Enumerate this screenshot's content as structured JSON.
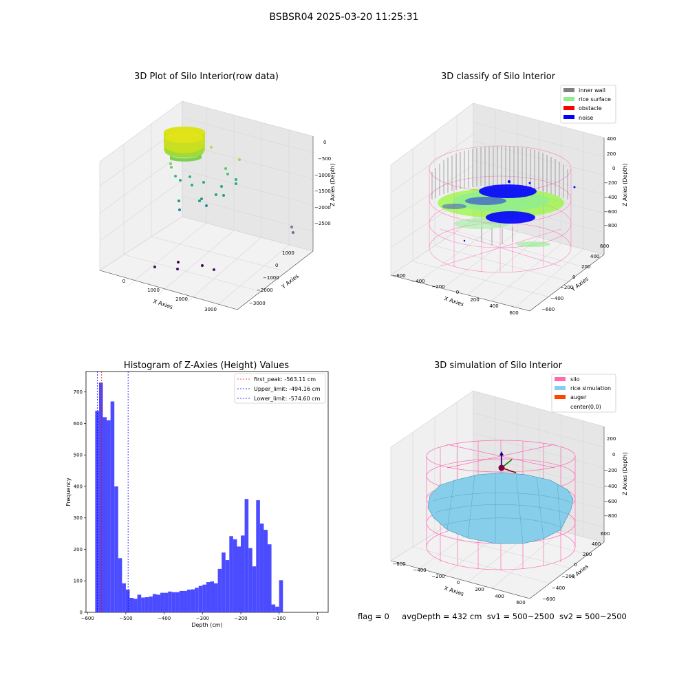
{
  "suptitle": "BSBSR04 2025-03-20 11:25:31",
  "footer": {
    "flag": "flag = 0",
    "avg_depth": "avgDepth = 432 cm",
    "sv1": "sv1 = 500~2500",
    "sv2": "sv2 = 500~2500"
  },
  "colors": {
    "inner_wall": "#808080",
    "rice_surface": "#90ee90",
    "obstacle": "#ff0000",
    "noise": "#0000ff",
    "silo": "#ff69b4",
    "rice_simulation": "#87ceeb",
    "auger": "#ff4500",
    "histogram": "#4b4bff",
    "first_peak": "#ff0000",
    "limits": "#0000ff"
  },
  "chart_data": [
    {
      "type": "scatter",
      "title": "3D Plot of Silo Interior(row data)",
      "xlabel": "X Axies",
      "ylabel": "Y Axies",
      "zlabel": "Z Axies (Depth)",
      "x_ticks": [
        "0",
        "1000",
        "2000",
        "3000"
      ],
      "y_ticks": [
        "1000",
        "0",
        "−1000",
        "−2000",
        "−3000"
      ],
      "z_ticks": [
        "0",
        "−500",
        "−1000",
        "−1500",
        "−2000",
        "−2500"
      ],
      "colormap": "viridis"
    },
    {
      "type": "scatter",
      "title": "3D classify of Silo Interior",
      "xlabel": "X Axies",
      "ylabel": "Y Axies",
      "zlabel": "Z Axies (Depth)",
      "x_ticks": [
        "−600",
        "−400",
        "−200",
        "0",
        "200",
        "400",
        "600"
      ],
      "y_ticks": [
        "600",
        "400",
        "200",
        "0",
        "−200",
        "−400",
        "−600"
      ],
      "z_ticks": [
        "400",
        "200",
        "0",
        "−200",
        "−400",
        "−600",
        "−800"
      ],
      "legend": [
        "inner wall",
        "rice surface",
        "obstacle",
        "noise"
      ],
      "legend_position": "top-right"
    },
    {
      "type": "bar",
      "title": "Histogram of Z-Axies (Height) Values",
      "xlabel": "Depth (cm)",
      "ylabel": "Frequency",
      "xlim": [
        -580,
        0
      ],
      "ylim": [
        0,
        765
      ],
      "x_ticks": [
        -600,
        -500,
        -400,
        -300,
        -200,
        -100,
        0
      ],
      "x_tick_labels": [
        "−600",
        "−500",
        "−400",
        "−300",
        "−200",
        "−100",
        "0"
      ],
      "y_ticks": [
        0,
        100,
        200,
        300,
        400,
        500,
        600,
        700
      ],
      "y_tick_labels": [
        "0",
        "100",
        "200",
        "300",
        "400",
        "500",
        "600",
        "700"
      ],
      "bin_width": 10,
      "bin_start": -580,
      "values": [
        640,
        730,
        620,
        610,
        670,
        400,
        172,
        92,
        72,
        46,
        43,
        56,
        47,
        48,
        50,
        58,
        56,
        62,
        62,
        66,
        64,
        64,
        68,
        68,
        72,
        73,
        78,
        84,
        88,
        96,
        98,
        92,
        138,
        190,
        166,
        242,
        232,
        209,
        244,
        360,
        204,
        146,
        356,
        282,
        262,
        216,
        25,
        18,
        102
      ],
      "lines": [
        {
          "name": "first_peak: -563.11 cm",
          "x": -563.11,
          "color": "#ff0000"
        },
        {
          "name": "Upper_limit: -494.16 cm",
          "x": -494.16,
          "color": "#0000ff"
        },
        {
          "name": "Lower_limit: -574.60 cm",
          "x": -574.6,
          "color": "#0000ff"
        }
      ],
      "legend_position": "top-right"
    },
    {
      "type": "other",
      "title": "3D simulation of Silo Interior",
      "xlabel": "X Axies",
      "ylabel": "Y Axies",
      "zlabel": "Z Axies (Depth)",
      "x_ticks": [
        "−600",
        "−400",
        "−200",
        "0",
        "200",
        "400",
        "600"
      ],
      "y_ticks": [
        "600",
        "400",
        "200",
        "0",
        "−200",
        "−400",
        "−600"
      ],
      "z_ticks": [
        "200",
        "0",
        "−200",
        "−400",
        "−600",
        "−800"
      ],
      "legend": [
        "silo",
        "rice simulation",
        "auger",
        "center(0,0)"
      ],
      "legend_position": "top-right"
    }
  ]
}
